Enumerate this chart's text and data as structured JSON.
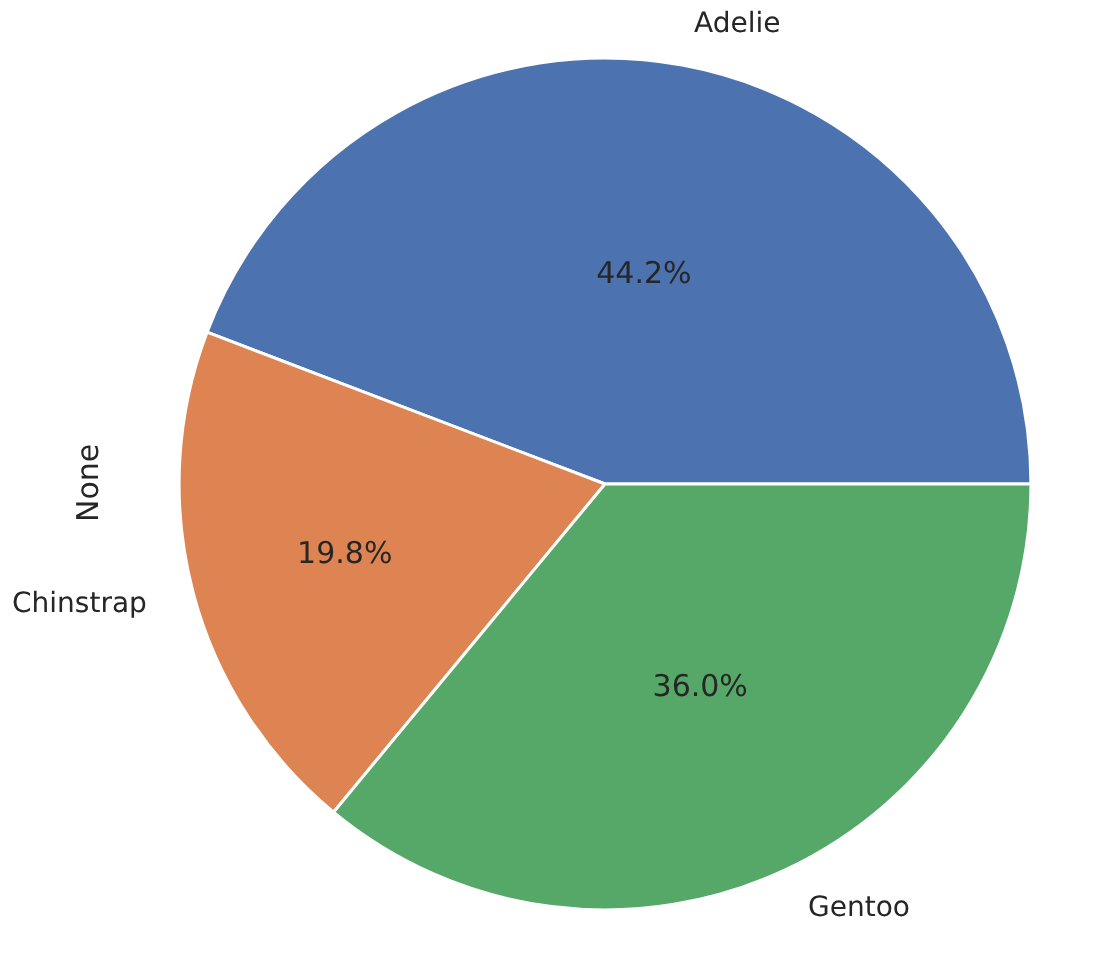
{
  "chart_data": {
    "type": "pie",
    "ylabel": "None",
    "categories": [
      "Adelie",
      "Chinstrap",
      "Gentoo"
    ],
    "values": [
      44.2,
      19.8,
      36.0
    ],
    "value_labels": [
      "44.2%",
      "19.8%",
      "36.0%"
    ],
    "colors": [
      "#4c72b0",
      "#dd8452",
      "#55a868"
    ],
    "legend": false
  }
}
